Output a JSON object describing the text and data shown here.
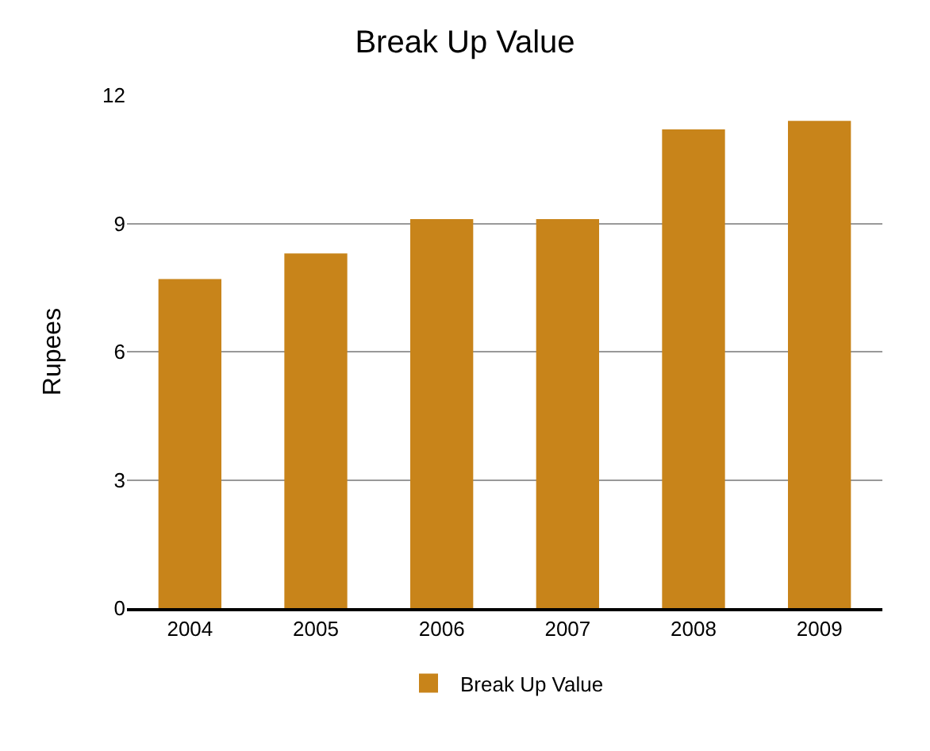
{
  "chart_data": {
    "type": "bar",
    "title": "Break Up Value",
    "ylabel": "Rupees",
    "categories": [
      "2004",
      "2005",
      "2006",
      "2007",
      "2008",
      "2009"
    ],
    "series": [
      {
        "name": "Break Up Value",
        "color": "#c8841a",
        "values": [
          7.7,
          8.3,
          9.1,
          9.1,
          11.2,
          11.4
        ]
      }
    ],
    "ylim": [
      0,
      12
    ],
    "yticks": [
      0,
      3,
      6,
      9,
      12
    ],
    "grid": "y",
    "legend": "bottom"
  }
}
